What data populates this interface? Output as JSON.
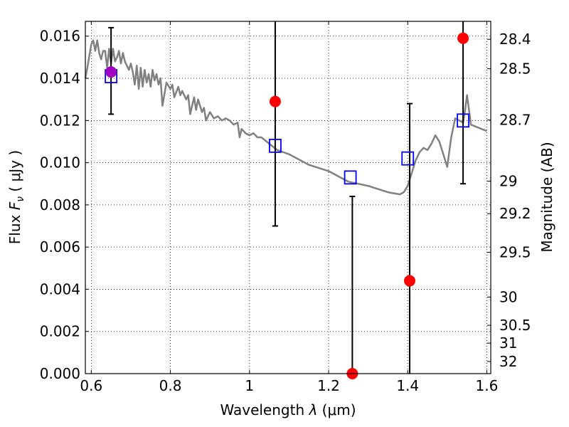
{
  "chart_data": {
    "type": "scatter",
    "xlabel": "Wavelength λ (μm)",
    "xlabel_prefix": "Wavelength  ",
    "xlabel_symbol": "λ",
    "xlabel_unit": " (μm)",
    "ylabel": "Flux Fν ( μJy )",
    "ylabel_prefix": "Flux  ",
    "ylabel_symbol": "F",
    "ylabel_subscript": "ν",
    "ylabel_unit": "  ( μJy )",
    "ylabel_right": "Magnitude (AB)",
    "xlim": [
      0.585,
      1.61
    ],
    "ylim": [
      0.0,
      0.0167
    ],
    "grid": true,
    "x_ticks": [
      0.6,
      0.8,
      1.0,
      1.2,
      1.4,
      1.6
    ],
    "x_tick_labels": [
      "0.6",
      "0.8",
      "1",
      "1.2",
      "1.4",
      "1.6"
    ],
    "y_ticks": [
      0.0,
      0.002,
      0.004,
      0.006,
      0.008,
      0.01,
      0.012,
      0.014,
      0.016
    ],
    "y_tick_labels": [
      "0.000",
      "0.002",
      "0.004",
      "0.006",
      "0.008",
      "0.010",
      "0.012",
      "0.014",
      "0.016"
    ],
    "mag_ticks": [
      28.4,
      28.5,
      28.7,
      29,
      29.2,
      29.5,
      30,
      30.5,
      31,
      32
    ],
    "mag_tick_labels": [
      "28.4",
      "28.5",
      "28.7",
      "29",
      "29.2",
      "29.5",
      "30",
      "30.5",
      "31",
      "32"
    ],
    "series": [
      {
        "kind": "model-spectrum",
        "color": "#808080",
        "x": [
          0.585,
          0.59,
          0.6,
          0.605,
          0.61,
          0.615,
          0.62,
          0.625,
          0.63,
          0.635,
          0.64,
          0.645,
          0.65,
          0.655,
          0.66,
          0.665,
          0.67,
          0.675,
          0.68,
          0.685,
          0.69,
          0.695,
          0.7,
          0.705,
          0.71,
          0.715,
          0.72,
          0.725,
          0.73,
          0.735,
          0.74,
          0.745,
          0.75,
          0.755,
          0.76,
          0.765,
          0.77,
          0.775,
          0.78,
          0.79,
          0.8,
          0.805,
          0.81,
          0.82,
          0.825,
          0.83,
          0.84,
          0.845,
          0.85,
          0.86,
          0.865,
          0.87,
          0.88,
          0.885,
          0.89,
          0.9,
          0.91,
          0.92,
          0.93,
          0.94,
          0.95,
          0.96,
          0.97,
          0.975,
          0.98,
          0.99,
          1.0,
          1.01,
          1.02,
          1.03,
          1.05,
          1.07,
          1.1,
          1.15,
          1.2,
          1.25,
          1.3,
          1.35,
          1.38,
          1.39,
          1.4,
          1.41,
          1.42,
          1.43,
          1.44,
          1.45,
          1.46,
          1.47,
          1.48,
          1.49,
          1.5,
          1.51,
          1.52,
          1.53,
          1.54,
          1.545,
          1.55,
          1.56,
          1.6
        ],
        "y": [
          0.014,
          0.0145,
          0.0156,
          0.0158,
          0.0153,
          0.0158,
          0.0152,
          0.0149,
          0.0153,
          0.0153,
          0.0145,
          0.0154,
          0.0147,
          0.0154,
          0.0148,
          0.015,
          0.0153,
          0.0147,
          0.0152,
          0.0148,
          0.0146,
          0.0144,
          0.0147,
          0.0143,
          0.0137,
          0.0146,
          0.0135,
          0.0145,
          0.0136,
          0.0144,
          0.0138,
          0.0142,
          0.0136,
          0.0144,
          0.0139,
          0.0142,
          0.0137,
          0.014,
          0.0127,
          0.0138,
          0.0135,
          0.0137,
          0.0131,
          0.0136,
          0.0132,
          0.0134,
          0.013,
          0.0132,
          0.0123,
          0.0131,
          0.0125,
          0.013,
          0.0124,
          0.0126,
          0.012,
          0.0124,
          0.0121,
          0.0122,
          0.012,
          0.0121,
          0.012,
          0.0118,
          0.0119,
          0.0112,
          0.0116,
          0.0114,
          0.0113,
          0.0114,
          0.0112,
          0.0112,
          0.0109,
          0.0106,
          0.0104,
          0.0099,
          0.0096,
          0.0091,
          0.0089,
          0.0086,
          0.0085,
          0.0086,
          0.0089,
          0.0095,
          0.0101,
          0.0105,
          0.0107,
          0.0106,
          0.0109,
          0.0113,
          0.011,
          0.0104,
          0.0098,
          0.0112,
          0.0121,
          0.012,
          0.0119,
          0.0125,
          0.0132,
          0.0118,
          0.0115
        ]
      },
      {
        "kind": "observed",
        "marker": "circle",
        "color": "#ff0000",
        "x": [
          0.65,
          1.065,
          1.26,
          1.405,
          1.54
        ],
        "y": [
          0.0143,
          0.0129,
          0.0,
          0.0044,
          0.0159
        ],
        "yerr_low": [
          0.0123,
          0.007,
          -0.001,
          -0.001,
          0.009
        ],
        "yerr_high": [
          0.0164,
          0.0175,
          0.0084,
          0.0128,
          0.0175
        ]
      },
      {
        "kind": "model-photometry",
        "marker": "square-open",
        "color": "#0000ff",
        "x": [
          0.65,
          1.065,
          1.255,
          1.4,
          1.54
        ],
        "y": [
          0.0141,
          0.0108,
          0.0093,
          0.0102,
          0.012
        ]
      }
    ],
    "overlap_marker_color": "#a000c0"
  }
}
